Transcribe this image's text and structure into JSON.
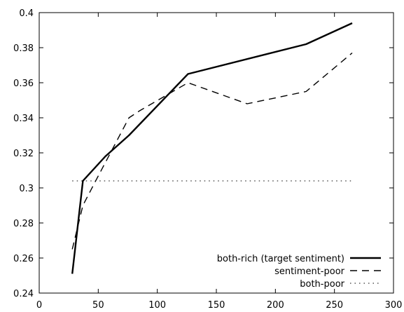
{
  "chart_data": {
    "type": "line",
    "title": "",
    "xlabel": "",
    "ylabel": "",
    "xlim": [
      0,
      300
    ],
    "ylim": [
      0.24,
      0.4
    ],
    "xticks": [
      0,
      50,
      100,
      150,
      200,
      250,
      300
    ],
    "yticks": [
      0.24,
      0.26,
      0.28,
      0.3,
      0.32,
      0.34,
      0.36,
      0.38,
      0.4
    ],
    "xtick_labels": [
      "0",
      "50",
      "100",
      "150",
      "200",
      "250",
      "300"
    ],
    "ytick_labels": [
      "0.24",
      "0.26",
      "0.28",
      "0.3",
      "0.32",
      "0.34",
      "0.36",
      "0.38",
      "0.4"
    ],
    "grid": false,
    "legend_position": "bottom-right",
    "series": [
      {
        "name": "both-rich (target sentiment)",
        "style": "solid",
        "color": "#000000",
        "x": [
          28,
          37,
          56,
          76,
          126,
          226,
          265
        ],
        "y": [
          0.251,
          0.304,
          0.318,
          0.33,
          0.365,
          0.382,
          0.394
        ]
      },
      {
        "name": "sentiment-poor",
        "style": "dashed",
        "color": "#000000",
        "x": [
          28,
          37,
          47,
          76,
          85,
          126,
          176,
          226,
          265
        ],
        "y": [
          0.265,
          0.29,
          0.303,
          0.34,
          0.344,
          0.36,
          0.348,
          0.355,
          0.377
        ]
      },
      {
        "name": "both-poor",
        "style": "dotted",
        "color": "#000000",
        "x": [
          28,
          265
        ],
        "y": [
          0.304,
          0.304
        ]
      }
    ]
  }
}
